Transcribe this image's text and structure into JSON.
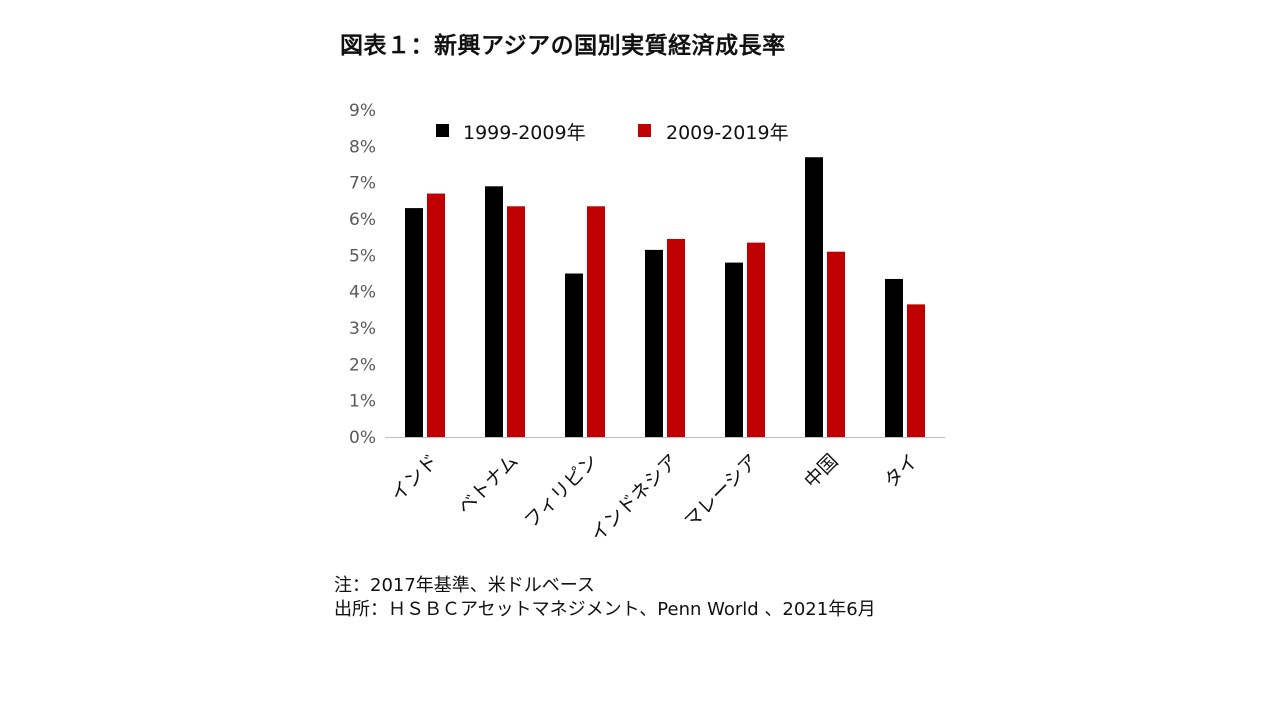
{
  "title": "図表１：新興アジアの国別実質経済成長率",
  "notes": {
    "line1": "注：2017年基準、米ドルベース",
    "line2": "出所：ＨＳＢＣアセットマネジメント、Penn World 、2021年6月"
  },
  "colors": {
    "series1": "#000000",
    "series2": "#c00000",
    "axis_text": "#595959",
    "baseline": "#bfbfbf"
  },
  "chart_data": {
    "type": "bar",
    "title": "図表１：新興アジアの国別実質経済成長率",
    "xlabel": "",
    "ylabel": "",
    "categories": [
      "インド",
      "ベトナム",
      "フィリピン",
      "インドネシア",
      "マレーシア",
      "中国",
      "タイ"
    ],
    "series": [
      {
        "name": "1999-2009年",
        "values": [
          6.3,
          6.9,
          4.5,
          5.15,
          4.8,
          7.7,
          4.35
        ]
      },
      {
        "name": "2009-2019年",
        "values": [
          6.7,
          6.35,
          6.35,
          5.45,
          5.35,
          5.1,
          3.65
        ]
      }
    ],
    "ylim": [
      0,
      9
    ],
    "yticks": [
      "0%",
      "1%",
      "2%",
      "3%",
      "4%",
      "5%",
      "6%",
      "7%",
      "8%",
      "9%"
    ],
    "grid": false,
    "legend_position": "top"
  }
}
